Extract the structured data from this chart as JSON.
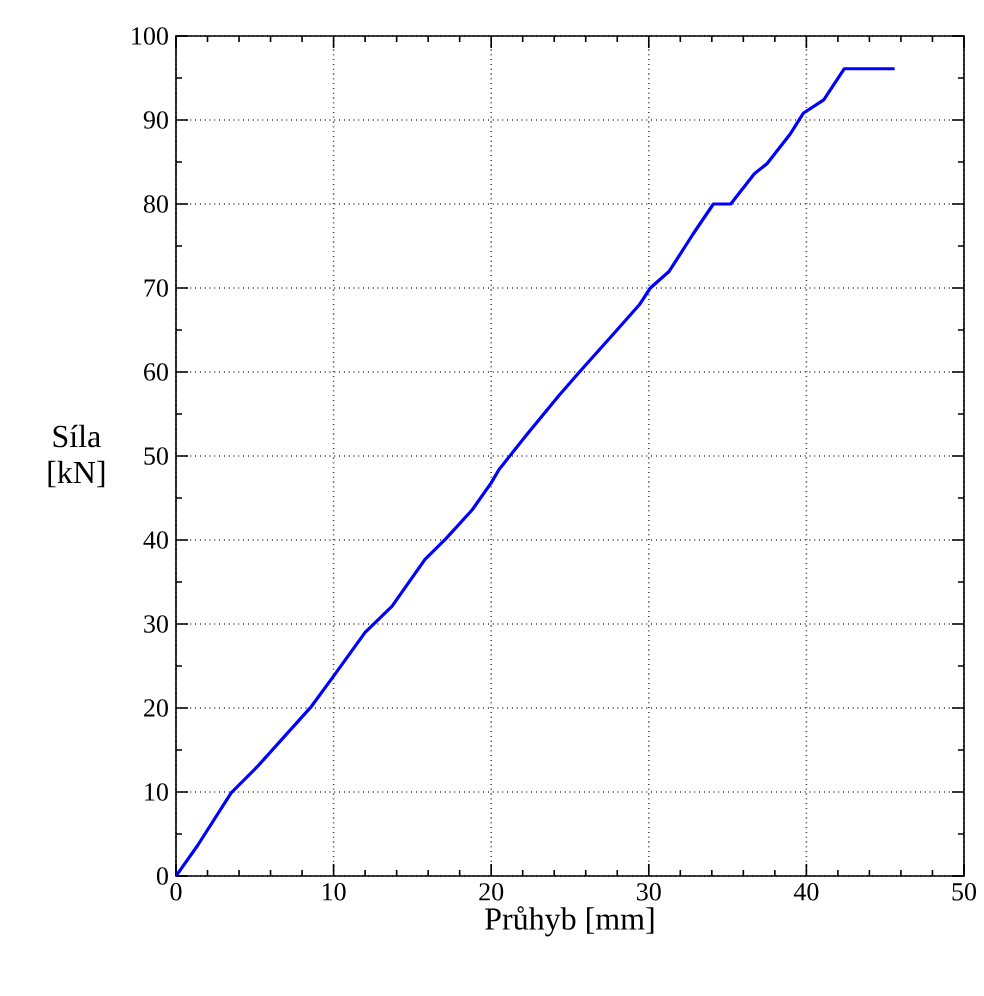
{
  "chart_data": {
    "type": "line",
    "xlabel": "Průhyb [mm]",
    "ylabel": "Síla [kN]",
    "xlim": [
      0,
      50
    ],
    "ylim": [
      0,
      100
    ],
    "xticks": [
      0,
      10,
      20,
      30,
      40,
      50
    ],
    "yticks": [
      0,
      10,
      20,
      30,
      40,
      50,
      60,
      70,
      80,
      90,
      100
    ],
    "grid": true,
    "series": [
      {
        "color": "#0000ff",
        "x": [
          0,
          1.36,
          3.5,
          5.2,
          8.6,
          10,
          12,
          13.7,
          15.8,
          17.1,
          18.8,
          20,
          20.5,
          22.2,
          24.3,
          25.6,
          27.7,
          29.4,
          30.1,
          31.3,
          32.8,
          34.1,
          35.2,
          36.7,
          37.5,
          39,
          39.8,
          41.1,
          42.4,
          45.6
        ],
        "values": [
          0,
          3.6,
          9.9,
          13.1,
          20.2,
          23.8,
          29,
          32.1,
          37.7,
          40.1,
          43.6,
          46.8,
          48.4,
          52.4,
          57.2,
          60,
          64.4,
          68,
          70,
          72,
          76.4,
          80,
          80,
          83.6,
          84.8,
          88.4,
          90.8,
          92.4,
          96.1,
          96.1
        ]
      }
    ]
  }
}
